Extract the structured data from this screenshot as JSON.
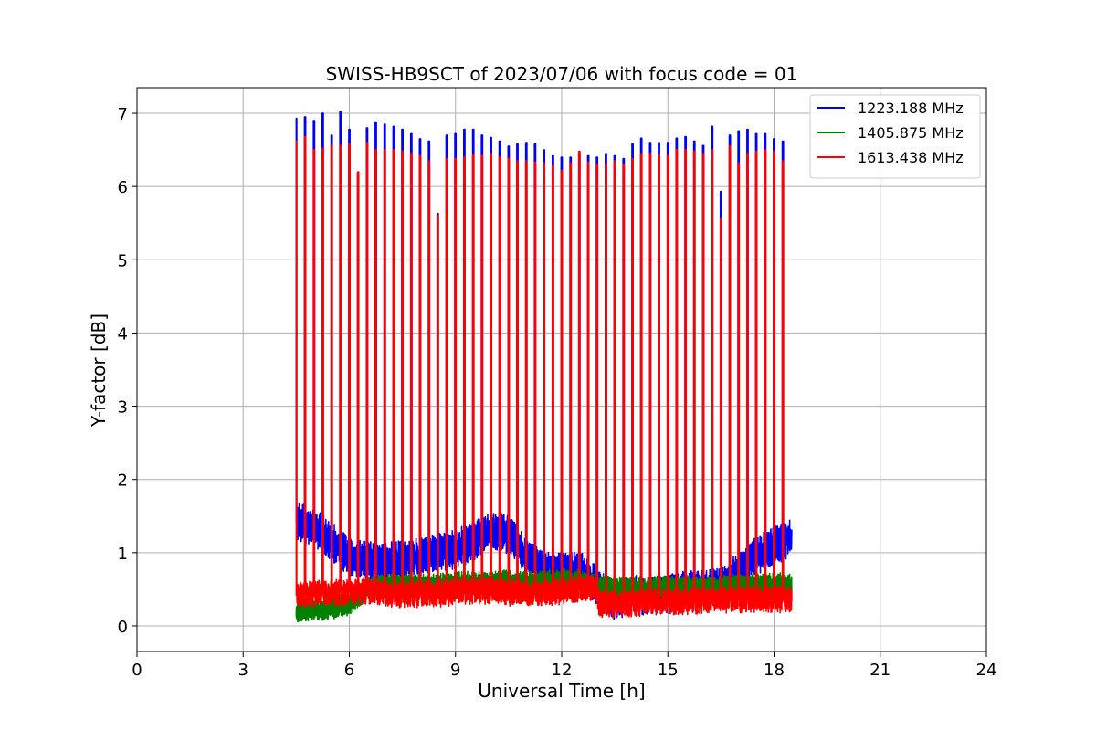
{
  "chart_data": {
    "type": "line",
    "title": "SWISS-HB9SCT of 2023/07/06 with focus code = 01",
    "xlabel": "Universal Time [h]",
    "ylabel": "Y-factor [dB]",
    "xlim": [
      0,
      24
    ],
    "ylim": [
      -0.35,
      7.35
    ],
    "xticks": [
      0,
      3,
      6,
      9,
      12,
      15,
      18,
      21,
      24
    ],
    "yticks": [
      0,
      1,
      2,
      3,
      4,
      5,
      6,
      7
    ],
    "grid": true,
    "legend_position": "top-right",
    "data_range_x": [
      4.5,
      18.5
    ],
    "calibration_spikes": {
      "x": [
        4.5,
        4.75,
        5.0,
        5.25,
        5.5,
        5.75,
        6.0,
        6.25,
        6.5,
        6.75,
        7.0,
        7.25,
        7.5,
        7.75,
        8.0,
        8.25,
        8.5,
        8.75,
        9.0,
        9.25,
        9.5,
        9.75,
        10.0,
        10.25,
        10.5,
        10.75,
        11.0,
        11.25,
        11.5,
        11.75,
        12.0,
        12.25,
        12.5,
        12.75,
        13.0,
        13.25,
        13.5,
        13.75,
        14.0,
        14.25,
        14.5,
        14.75,
        15.0,
        15.25,
        15.5,
        15.75,
        16.0,
        16.25,
        16.5,
        16.75,
        17.0,
        17.25,
        17.5,
        17.75,
        18.0,
        18.25
      ],
      "peak_1223": [
        6.93,
        6.95,
        6.9,
        7.0,
        6.7,
        7.02,
        6.78,
        6.15,
        6.8,
        6.88,
        6.85,
        6.82,
        6.78,
        6.72,
        6.65,
        6.62,
        5.63,
        6.7,
        6.72,
        6.78,
        6.78,
        6.7,
        6.67,
        6.62,
        6.55,
        6.58,
        6.6,
        6.58,
        6.5,
        6.42,
        6.4,
        6.4,
        6.45,
        6.42,
        6.4,
        6.45,
        6.42,
        6.38,
        6.58,
        6.66,
        6.6,
        6.6,
        6.6,
        6.66,
        6.68,
        6.62,
        6.56,
        6.82,
        5.93,
        6.7,
        6.76,
        6.78,
        6.72,
        6.72,
        6.65,
        6.62
      ],
      "peak_1613": [
        6.62,
        6.68,
        6.5,
        6.52,
        6.56,
        6.56,
        6.58,
        6.2,
        6.6,
        6.5,
        6.5,
        6.5,
        6.48,
        6.45,
        6.42,
        6.35,
        5.6,
        6.38,
        6.38,
        6.4,
        6.43,
        6.42,
        6.45,
        6.4,
        6.38,
        6.35,
        6.35,
        6.33,
        6.32,
        6.28,
        6.22,
        6.32,
        6.48,
        6.33,
        6.3,
        6.3,
        6.35,
        6.3,
        6.38,
        6.45,
        6.45,
        6.43,
        6.42,
        6.5,
        6.5,
        6.48,
        6.45,
        6.5,
        5.56,
        6.55,
        6.32,
        6.45,
        6.48,
        6.5,
        6.48,
        6.35
      ]
    },
    "series": [
      {
        "name": "1223.188 MHz",
        "color": "#0000ff",
        "noise_amplitude": 0.32,
        "baseline": {
          "x": [
            4.5,
            5.0,
            5.5,
            6.0,
            6.5,
            7.0,
            7.5,
            8.0,
            8.5,
            9.0,
            9.5,
            10.0,
            10.5,
            11.0,
            11.5,
            12.0,
            12.5,
            13.0,
            13.5,
            14.0,
            14.5,
            15.0,
            15.5,
            16.0,
            16.5,
            17.0,
            17.5,
            18.0,
            18.5
          ],
          "y": [
            1.42,
            1.35,
            1.15,
            0.95,
            0.9,
            0.88,
            0.9,
            0.95,
            1.0,
            1.05,
            1.15,
            1.3,
            1.25,
            0.95,
            0.75,
            0.75,
            0.75,
            0.55,
            0.35,
            0.42,
            0.4,
            0.45,
            0.5,
            0.5,
            0.55,
            0.75,
            0.95,
            1.1,
            1.2
          ]
        }
      },
      {
        "name": "1405.875 MHz",
        "color": "#008000",
        "noise_amplitude": 0.2,
        "baseline": {
          "x": [
            4.5,
            5.0,
            5.5,
            6.0,
            6.5,
            7.0,
            7.5,
            8.0,
            8.5,
            9.0,
            9.5,
            10.0,
            10.5,
            11.0,
            11.5,
            12.0,
            12.5,
            13.0,
            13.5,
            14.0,
            14.5,
            15.0,
            15.5,
            16.0,
            16.5,
            17.0,
            17.5,
            18.0,
            18.5
          ],
          "y": [
            0.2,
            0.22,
            0.26,
            0.3,
            0.52,
            0.55,
            0.55,
            0.55,
            0.56,
            0.58,
            0.58,
            0.6,
            0.6,
            0.58,
            0.6,
            0.62,
            0.6,
            0.55,
            0.5,
            0.5,
            0.52,
            0.52,
            0.52,
            0.52,
            0.52,
            0.55,
            0.55,
            0.56,
            0.56
          ]
        }
      },
      {
        "name": "1613.438 MHz",
        "color": "#ff0000",
        "noise_amplitude": 0.22,
        "baseline": {
          "x": [
            4.5,
            5.0,
            5.5,
            6.0,
            6.5,
            7.0,
            7.5,
            8.0,
            8.5,
            9.0,
            9.5,
            10.0,
            10.5,
            11.0,
            11.5,
            12.0,
            12.5,
            12.95,
            13.05,
            13.5,
            14.0,
            14.5,
            15.0,
            15.5,
            16.0,
            16.5,
            17.0,
            17.5,
            18.0,
            18.5
          ],
          "y": [
            0.42,
            0.44,
            0.45,
            0.46,
            0.47,
            0.44,
            0.42,
            0.44,
            0.44,
            0.46,
            0.48,
            0.48,
            0.46,
            0.44,
            0.44,
            0.46,
            0.5,
            0.52,
            0.3,
            0.3,
            0.3,
            0.33,
            0.33,
            0.33,
            0.35,
            0.36,
            0.36,
            0.36,
            0.36,
            0.36
          ]
        }
      }
    ]
  }
}
